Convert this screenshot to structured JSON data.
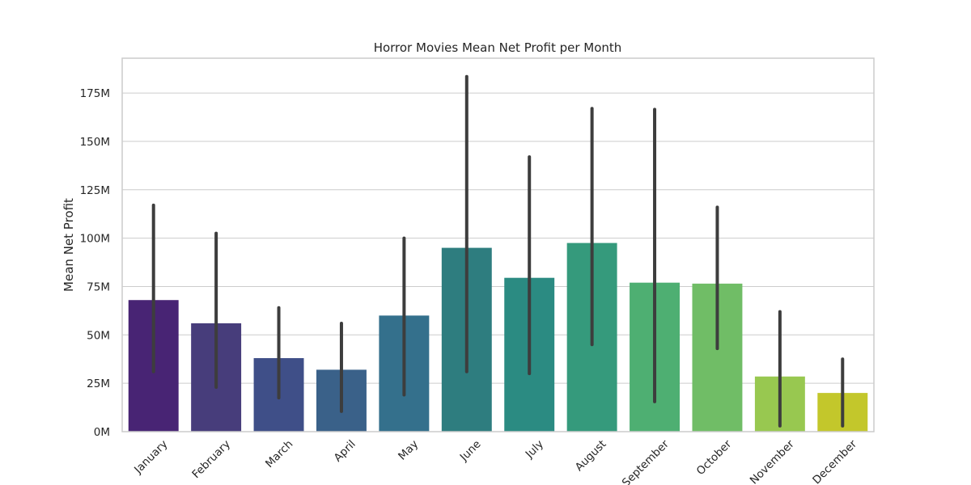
{
  "chart_data": {
    "type": "bar",
    "title": "Horror Movies Mean Net Profit per Month",
    "xlabel": "",
    "ylabel": "Mean Net Profit",
    "ylim": [
      0,
      193
    ],
    "yticks": [
      0,
      25,
      50,
      75,
      100,
      125,
      150,
      175
    ],
    "ytick_labels": [
      "0M",
      "25M",
      "50M",
      "75M",
      "100M",
      "125M",
      "150M",
      "175M"
    ],
    "grid": true,
    "categories": [
      "January",
      "February",
      "March",
      "April",
      "May",
      "June",
      "July",
      "August",
      "September",
      "October",
      "November",
      "December"
    ],
    "values": [
      68,
      56,
      38,
      32,
      60,
      95,
      79.5,
      97.5,
      77,
      76.5,
      28.5,
      20
    ],
    "error_low": [
      31,
      23,
      17.5,
      10.5,
      19,
      31,
      30,
      45,
      15.5,
      43,
      3,
      3
    ],
    "error_high": [
      117,
      102.5,
      64,
      56,
      100,
      183.5,
      142,
      167,
      166.5,
      116,
      62,
      37.5
    ],
    "colors": [
      "#482474",
      "#473d7b",
      "#3f4f88",
      "#3a6189",
      "#34708c",
      "#2e7d7f",
      "#2b8b82",
      "#359a7c",
      "#4eaf72",
      "#70bd66",
      "#98c850",
      "#c3c72b"
    ]
  }
}
